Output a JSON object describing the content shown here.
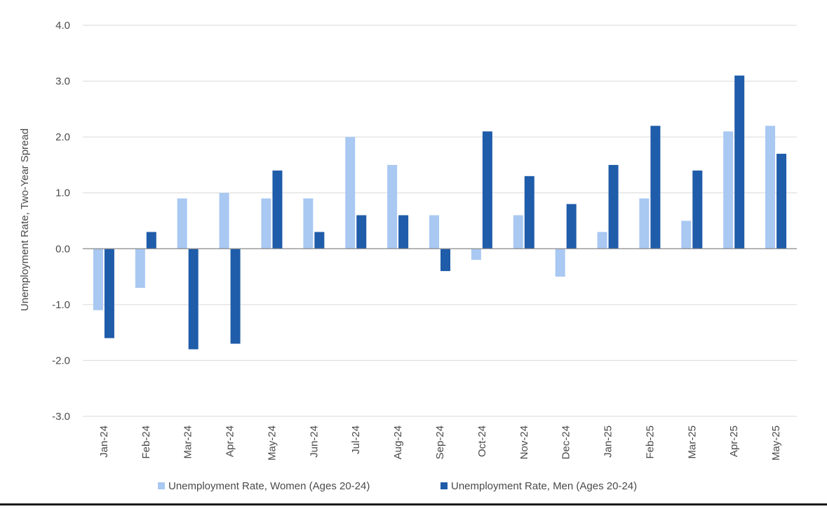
{
  "chart_data": {
    "type": "bar",
    "title": "",
    "xlabel": "",
    "ylabel": "Unemployment Rate, Two-Year Spread",
    "ylim": [
      -3.0,
      4.0
    ],
    "yticks": [
      "4.0",
      "3.0",
      "2.0",
      "1.0",
      "0.0",
      "-1.0",
      "-2.0",
      "-3.0"
    ],
    "grid": true,
    "legend_position": "bottom-center",
    "categories": [
      "Jan-24",
      "Feb-24",
      "Mar-24",
      "Apr-24",
      "May-24",
      "Jun-24",
      "Jul-24",
      "Aug-24",
      "Sep-24",
      "Oct-24",
      "Nov-24",
      "Dec-24",
      "Jan-25",
      "Feb-25",
      "Mar-25",
      "Apr-25",
      "May-25"
    ],
    "series": [
      {
        "name": "Unemployment Rate, Women (Ages 20-24)",
        "color": "#a9c8f2",
        "values": [
          -1.1,
          -0.7,
          0.9,
          1.0,
          0.9,
          0.9,
          2.0,
          1.5,
          0.6,
          -0.2,
          0.6,
          -0.5,
          0.3,
          0.9,
          0.5,
          2.1,
          2.2
        ]
      },
      {
        "name": "Unemployment Rate, Men (Ages 20-24)",
        "color": "#1f5ca9",
        "values": [
          -1.6,
          0.3,
          -1.8,
          -1.7,
          1.4,
          0.3,
          0.6,
          0.6,
          -0.4,
          2.1,
          1.3,
          0.8,
          1.5,
          2.2,
          1.4,
          3.1,
          1.7
        ]
      }
    ]
  }
}
